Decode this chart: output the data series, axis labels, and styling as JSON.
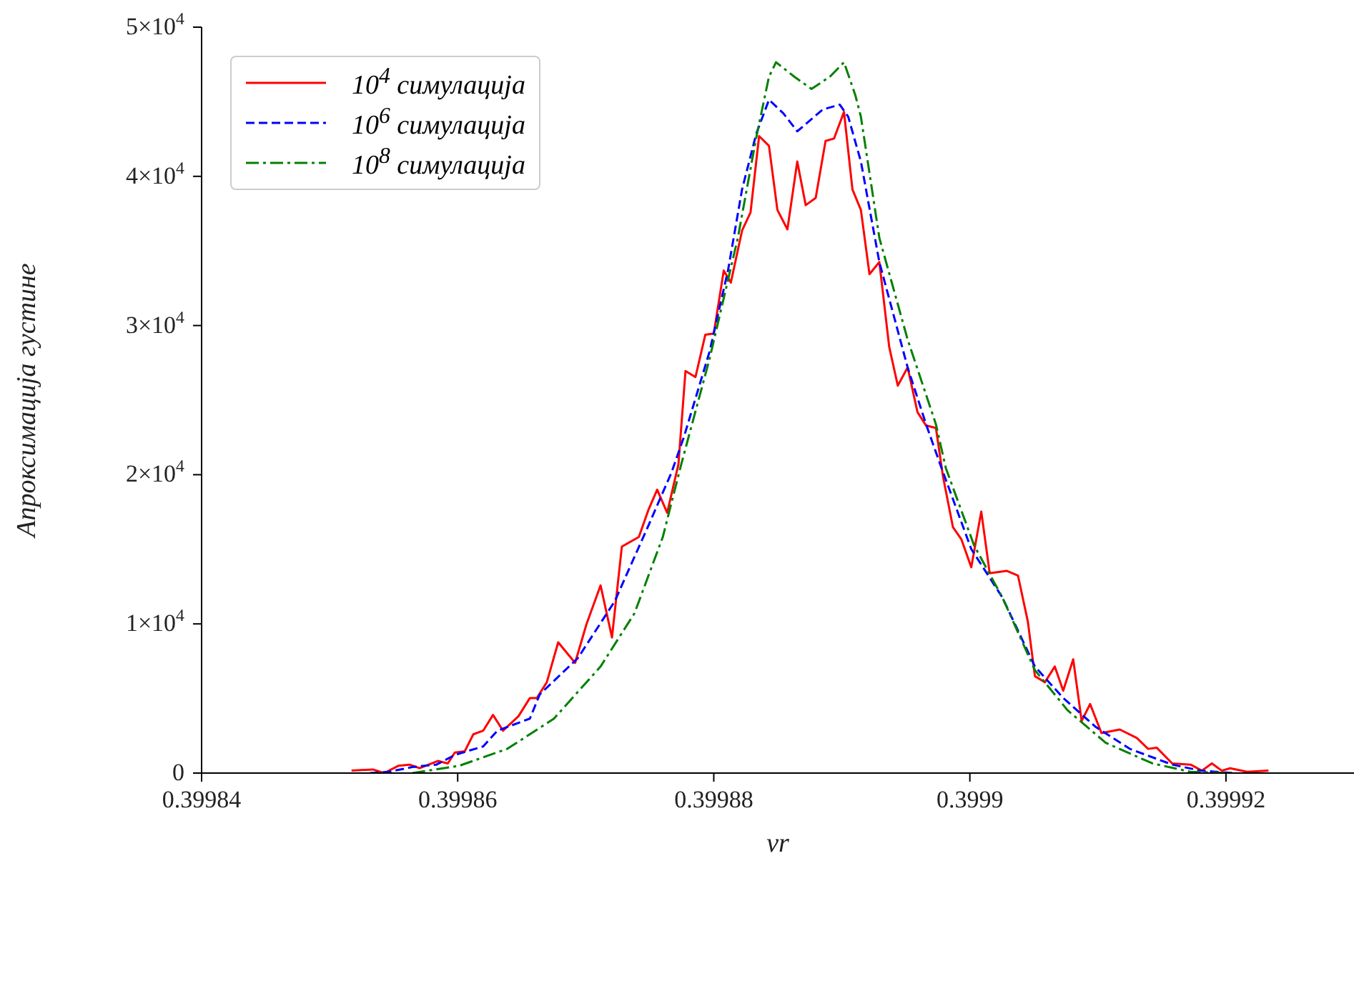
{
  "chart_data": {
    "type": "line",
    "xlabel": "vr",
    "ylabel": "Апроксимација густине",
    "xlim": [
      0.39984,
      0.39993
    ],
    "xticks": [
      0.39984,
      0.39986,
      0.39988,
      0.3999,
      0.39992
    ],
    "ylim": [
      0,
      50000
    ],
    "yticks": [
      0,
      {
        "value": 10000,
        "label": "1×10$^{4}$"
      },
      {
        "value": 20000,
        "label": "2×10$^{4}$"
      },
      {
        "value": 30000,
        "label": "3×10$^{4}$"
      },
      {
        "value": 40000,
        "label": "4×10$^{4}$"
      },
      {
        "value": 50000,
        "label": "5×10$^{4}$"
      }
    ],
    "grid": false,
    "legend": "top left",
    "marker": "none",
    "series": [
      {
        "name": "10$^{4}$ симулација",
        "color": "#ff0000",
        "line_style": "solid",
        "x": [
          0.39985171,
          0.39985337,
          0.39985425,
          0.39985536,
          0.39985624,
          0.39985702,
          0.39985845,
          0.39985923,
          0.39985978,
          0.39986055,
          0.39986122,
          0.39986199,
          0.39986276,
          0.39986354,
          0.39986475,
          0.39986564,
          0.39986619,
          0.39986696,
          0.39986785,
          0.39986917,
          0.39987006,
          0.39987116,
          0.39987205,
          0.39987282,
          0.39987415,
          0.39987492,
          0.39987558,
          0.39987636,
          0.39987724,
          0.39987779,
          0.39987857,
          0.39987934,
          0.39988,
          0.39988078,
          0.39988133,
          0.39988221,
          0.39988287,
          0.39988354,
          0.39988431,
          0.39988497,
          0.39988575,
          0.39988652,
          0.39988718,
          0.39988796,
          0.39988873,
          0.39988939,
          0.39989017,
          0.39989083,
          0.39989149,
          0.39989216,
          0.39989293,
          0.3998937,
          0.39989437,
          0.39989514,
          0.39989591,
          0.39989658,
          0.39989735,
          0.3998979,
          0.39989868,
          0.39989934,
          0.39990011,
          0.39990089,
          0.39990155,
          0.39990287,
          0.39990376,
          0.39990453,
          0.39990508,
          0.39990586,
          0.39990663,
          0.39990729,
          0.39990807,
          0.39990873,
          0.39990939,
          0.39991028,
          0.39991171,
          0.39991304,
          0.39991392,
          0.39991459,
          0.3999158,
          0.39991724,
          0.39991812,
          0.3999189,
          0.39991967,
          0.39992033,
          0.39992166,
          0.39992332
        ],
        "values": [
          162,
          244,
          0,
          487,
          568,
          325,
          812,
          649,
          1380,
          1461,
          2597,
          2841,
          3896,
          2841,
          3815,
          5033,
          5033,
          6088,
          8766,
          7386,
          9984,
          12581,
          9091,
          15179,
          15828,
          17695,
          18994,
          17452,
          20698,
          26948,
          26543,
          29384,
          29465,
          33686,
          32874,
          36364,
          37582,
          42695,
          42046,
          37744,
          36445,
          40991,
          38069,
          38556,
          42371,
          42533,
          44319,
          39124,
          37744,
          33442,
          34254,
          28572,
          25974,
          27192,
          24189,
          23296,
          23133,
          19887,
          16478,
          15666,
          13799,
          17533,
          13393,
          13555,
          13231,
          10146,
          6494,
          6088,
          7143,
          5520,
          7630,
          3490,
          4627,
          2679,
          2922,
          2354,
          1623,
          1705,
          649,
          568,
          162,
          649,
          162,
          325,
          81,
          162
        ]
      },
      {
        "name": "10$^{6}$ симулација",
        "color": "#0000ff",
        "line_style": "dashed",
        "x": [
          0.39985315,
          0.39985459,
          0.39985646,
          0.39985834,
          0.39985978,
          0.39986199,
          0.3998631,
          0.39986564,
          0.39986641,
          0.39986939,
          0.39987227,
          0.39987492,
          0.39987669,
          0.39987768,
          0.39987967,
          0.39988111,
          0.39988221,
          0.39988332,
          0.39988431,
          0.39988542,
          0.39988652,
          0.39988741,
          0.39988851,
          0.39988984,
          0.3998905,
          0.39989149,
          0.39989293,
          0.39989514,
          0.39989658,
          0.39989768,
          0.39990011,
          0.39990254,
          0.39990508,
          0.39990729,
          0.39990984,
          0.39991249,
          0.3999158,
          0.39991801,
          0.39992056
        ],
        "values": [
          0,
          81,
          406,
          568,
          1218,
          1786,
          2841,
          3653,
          5276,
          7711,
          11526,
          16640,
          20130,
          22565,
          28247,
          33686,
          39124,
          42858,
          45131,
          44238,
          43020,
          43670,
          44481,
          44806,
          43994,
          40991,
          34254,
          27192,
          23377,
          20698,
          15016,
          11770,
          7143,
          5033,
          3084,
          1623,
          568,
          162,
          0
        ]
      },
      {
        "name": "10$^{8}$ симулација",
        "color": "#008000",
        "line_style": "dashdot",
        "x": [
          0.39985646,
          0.39986011,
          0.39986387,
          0.39986752,
          0.39987116,
          0.39987381,
          0.39987602,
          0.39987746,
          0.39987967,
          0.39988188,
          0.39988332,
          0.39988431,
          0.39988486,
          0.3998863,
          0.39988763,
          0.39988906,
          0.39989017,
          0.39989105,
          0.39989149,
          0.39989293,
          0.39989514,
          0.39989735,
          0.39989812,
          0.39990033,
          0.39990254,
          0.39990508,
          0.39990762,
          0.39991061,
          0.39991426,
          0.39991724,
          0.39992056
        ],
        "values": [
          0,
          487,
          1623,
          3653,
          7143,
          10714,
          15828,
          20698,
          27760,
          35877,
          42614,
          46673,
          47647,
          46673,
          45861,
          46673,
          47647,
          45455,
          43994,
          35877,
          29059,
          23377,
          20455,
          15260,
          11770,
          6899,
          4221,
          2029,
          649,
          81,
          0
        ]
      }
    ]
  }
}
